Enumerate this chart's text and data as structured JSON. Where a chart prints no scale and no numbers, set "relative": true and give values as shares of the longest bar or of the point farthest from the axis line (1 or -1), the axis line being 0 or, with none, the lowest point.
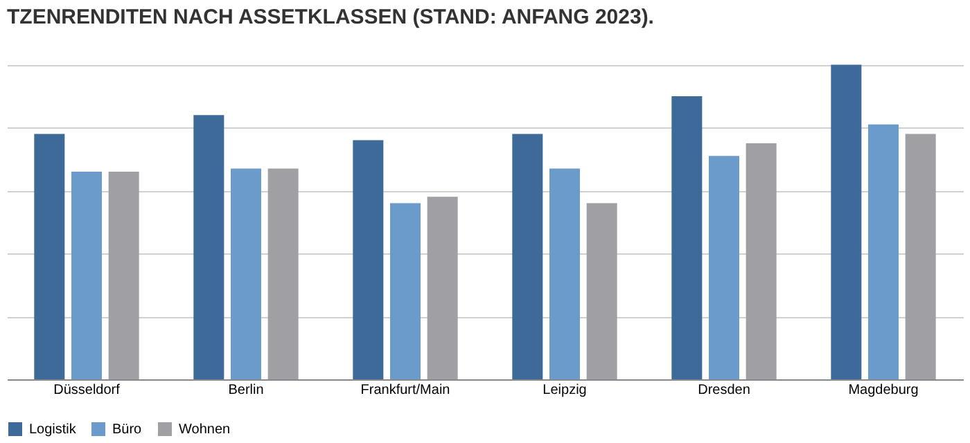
{
  "chart_data": {
    "type": "bar",
    "title": "TZENRENDITEN NACH ASSETKLASSEN (STAND: ANFANG 2023).",
    "relative": true,
    "categories": [
      "Düsseldorf",
      "Berlin",
      "Frankfurt/Main",
      "Leipzig",
      "Dresden",
      "Magdeburg"
    ],
    "series": [
      {
        "name": "Logistik",
        "color": "#3d6a99",
        "values": [
          0.78,
          0.84,
          0.76,
          0.78,
          0.9,
          1
        ]
      },
      {
        "name": "Büro",
        "color": "#6b9bcb",
        "values": [
          0.66,
          0.67,
          0.56,
          0.67,
          0.71,
          0.81
        ]
      },
      {
        "name": "Wohnen",
        "color": "#a0a0a4",
        "values": [
          0.66,
          0.67,
          0.58,
          0.56,
          0.75,
          0.78
        ]
      }
    ],
    "grid": "y",
    "legend": "bottom"
  }
}
